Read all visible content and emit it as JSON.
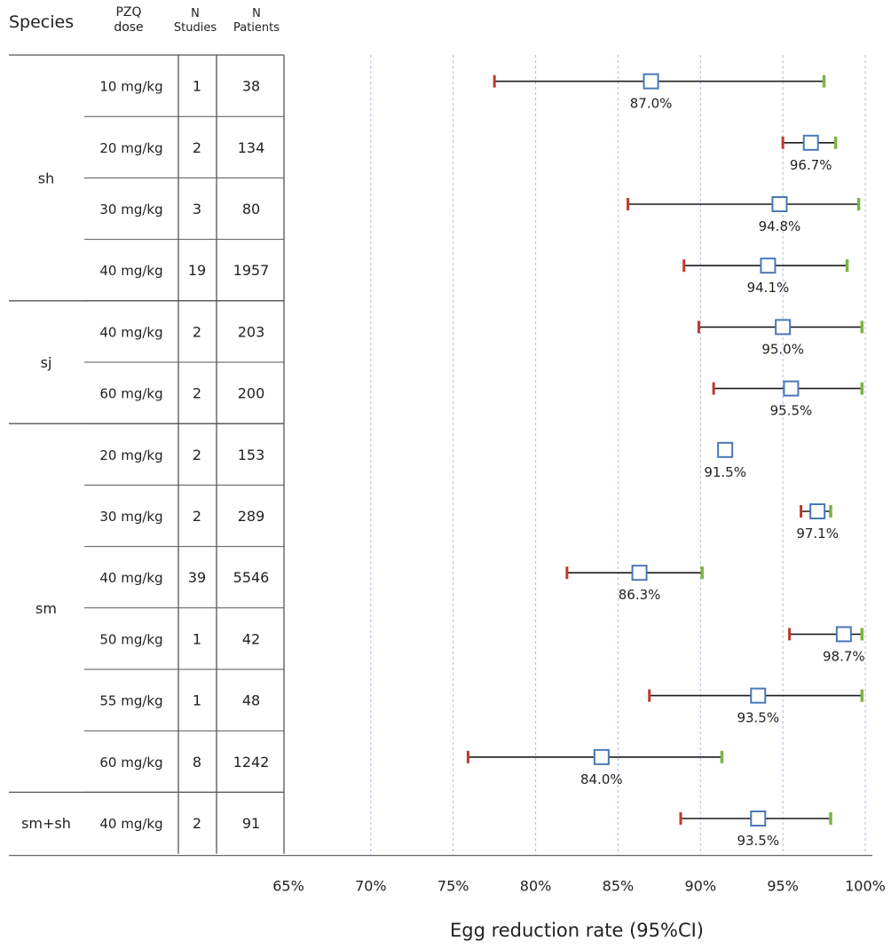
{
  "headers": {
    "species": "Species",
    "dose_line1": "PZQ",
    "dose_line2": "dose",
    "studies_line1": "N",
    "studies_line2": "Studies",
    "patients_line1": "N",
    "patients_line2": "Patients"
  },
  "chart_data": {
    "type": "forest",
    "xlabel": "Egg reduction rate (95%CI)",
    "xlim": [
      65,
      100
    ],
    "xticks": [
      "65%",
      "70%",
      "75%",
      "80%",
      "85%",
      "90%",
      "95%",
      "100%"
    ],
    "grid": "vertical dashed",
    "species_groups": [
      {
        "label": "sh",
        "rows": 4
      },
      {
        "label": "sj",
        "rows": 2
      },
      {
        "label": "sm",
        "rows": 6
      },
      {
        "label": "sm+sh",
        "rows": 1
      }
    ],
    "rows": [
      {
        "species": "sh",
        "dose": "10 mg/kg",
        "n_studies": "1",
        "n_patients": "38",
        "estimate": 87.0,
        "ci_low": 77.5,
        "ci_high": 97.5,
        "label": "87.0%"
      },
      {
        "species": "sh",
        "dose": "20 mg/kg",
        "n_studies": "2",
        "n_patients": "134",
        "estimate": 96.7,
        "ci_low": 95.0,
        "ci_high": 98.2,
        "label": "96.7%"
      },
      {
        "species": "sh",
        "dose": "30 mg/kg",
        "n_studies": "3",
        "n_patients": "80",
        "estimate": 94.8,
        "ci_low": 85.6,
        "ci_high": 99.6,
        "label": "94.8%"
      },
      {
        "species": "sh",
        "dose": "40 mg/kg",
        "n_studies": "19",
        "n_patients": "1957",
        "estimate": 94.1,
        "ci_low": 89.0,
        "ci_high": 98.9,
        "label": "94.1%"
      },
      {
        "species": "sj",
        "dose": "40 mg/kg",
        "n_studies": "2",
        "n_patients": "203",
        "estimate": 95.0,
        "ci_low": 89.9,
        "ci_high": 99.8,
        "label": "95.0%"
      },
      {
        "species": "sj",
        "dose": "60 mg/kg",
        "n_studies": "2",
        "n_patients": "200",
        "estimate": 95.5,
        "ci_low": 90.8,
        "ci_high": 99.8,
        "label": "95.5%"
      },
      {
        "species": "sm",
        "dose": "20 mg/kg",
        "n_studies": "2",
        "n_patients": "153",
        "estimate": 91.5,
        "ci_low": 91.2,
        "ci_high": 91.8,
        "label": "91.5%"
      },
      {
        "species": "sm",
        "dose": "30 mg/kg",
        "n_studies": "2",
        "n_patients": "289",
        "estimate": 97.1,
        "ci_low": 96.1,
        "ci_high": 97.9,
        "label": "97.1%"
      },
      {
        "species": "sm",
        "dose": "40 mg/kg",
        "n_studies": "39",
        "n_patients": "5546",
        "estimate": 86.3,
        "ci_low": 81.9,
        "ci_high": 90.1,
        "label": "86.3%"
      },
      {
        "species": "sm",
        "dose": "50 mg/kg",
        "n_studies": "1",
        "n_patients": "42",
        "estimate": 98.7,
        "ci_low": 95.4,
        "ci_high": 99.8,
        "label": "98.7%"
      },
      {
        "species": "sm",
        "dose": "55 mg/kg",
        "n_studies": "1",
        "n_patients": "48",
        "estimate": 93.5,
        "ci_low": 86.9,
        "ci_high": 99.8,
        "label": "93.5%"
      },
      {
        "species": "sm",
        "dose": "60 mg/kg",
        "n_studies": "8",
        "n_patients": "1242",
        "estimate": 84.0,
        "ci_low": 75.9,
        "ci_high": 91.3,
        "label": "84.0%"
      },
      {
        "species": "sm+sh",
        "dose": "40 mg/kg",
        "n_studies": "2",
        "n_patients": "91",
        "estimate": 93.5,
        "ci_low": 88.8,
        "ci_high": 97.9,
        "label": "93.5%"
      }
    ],
    "colors": {
      "ci_line": "#1a1a1a",
      "lower_tick": "#c0392b",
      "upper_tick": "#7cb342",
      "marker_border": "#4a78b8",
      "marker_fill": "#ffffff",
      "grid": "#a9bde0",
      "table_line": "#555555"
    }
  }
}
